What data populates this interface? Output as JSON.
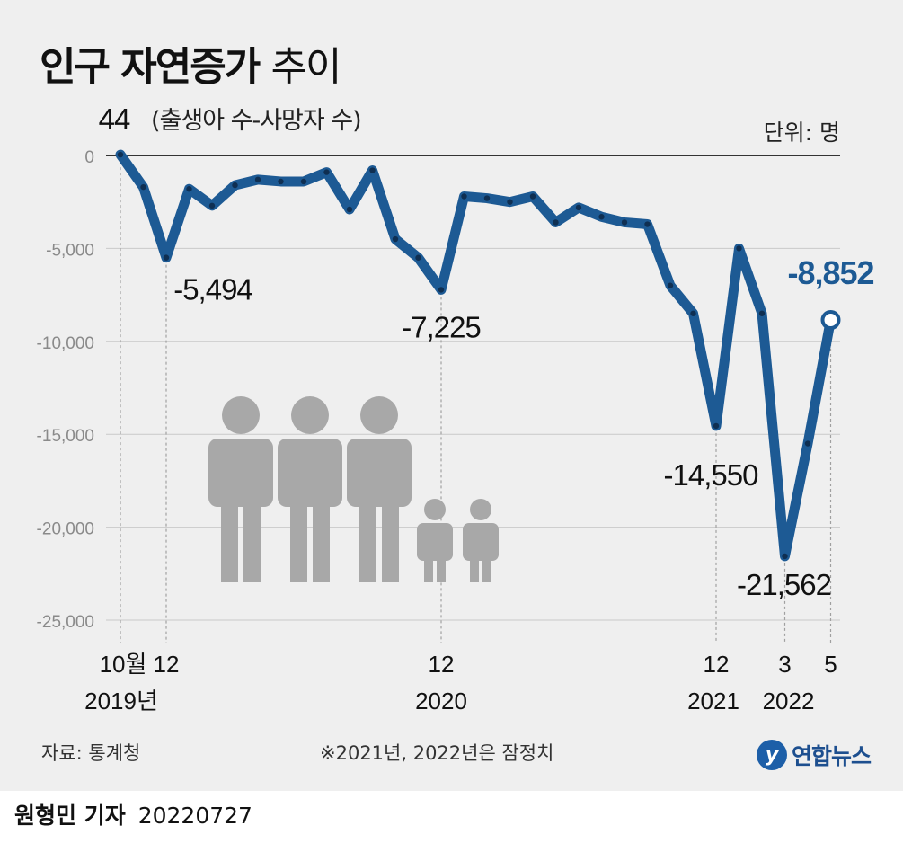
{
  "header": {
    "title_bold": "인구 자연증가",
    "title_regular": "추이",
    "subtitle": "(출생아 수-사망자 수)",
    "unit": "단위: 명"
  },
  "footer": {
    "source": "자료: 통계청",
    "note": "※2021년, 2022년은 잠정치",
    "logo_text": "연합뉴스",
    "byline_name": "원형민 기자",
    "byline_date": "20220727"
  },
  "colors": {
    "line": "#1d5a94",
    "highlight": "#1d5a94",
    "panel": "#efefef",
    "people": "#a8a8a8"
  },
  "chart_data": {
    "type": "line",
    "title": "인구 자연증가 추이",
    "subtitle": "(출생아 수-사망자 수)",
    "unit": "단위: 명",
    "ylim": [
      -25000,
      0
    ],
    "yticks": [
      0,
      -5000,
      -10000,
      -15000,
      -20000,
      -25000
    ],
    "ytick_labels": [
      "0",
      "-5,000",
      "-10,000",
      "-15,000",
      "-20,000",
      "-25,000"
    ],
    "grid": true,
    "x": [
      "2019-10",
      "2019-11",
      "2019-12",
      "2020-01",
      "2020-02",
      "2020-03",
      "2020-04",
      "2020-05",
      "2020-06",
      "2020-07",
      "2020-08",
      "2020-09",
      "2020-10",
      "2020-11",
      "2020-12",
      "2021-01",
      "2021-02",
      "2021-03",
      "2021-04",
      "2021-05",
      "2021-06",
      "2021-07",
      "2021-08",
      "2021-09",
      "2021-10",
      "2021-11",
      "2021-12",
      "2022-01",
      "2022-02",
      "2022-03",
      "2022-04",
      "2022-05"
    ],
    "values": [
      44,
      -1700,
      -5494,
      -1800,
      -2700,
      -1600,
      -1300,
      -1400,
      -1400,
      -900,
      -2900,
      -800,
      -4500,
      -5500,
      -7225,
      -2200,
      -2300,
      -2500,
      -2200,
      -3600,
      -2800,
      -3300,
      -3600,
      -3700,
      -7000,
      -8500,
      -14550,
      -5000,
      -8500,
      -21562,
      -15500,
      -8852
    ],
    "tick_labels": [
      {
        "index": 0,
        "label": "10월"
      },
      {
        "index": 2,
        "label": "12"
      },
      {
        "index": 14,
        "label": "12"
      },
      {
        "index": 26,
        "label": "12"
      },
      {
        "index": 29,
        "label": "3"
      },
      {
        "index": 31,
        "label": "5"
      }
    ],
    "year_labels": [
      {
        "index": 2,
        "label": "2019년"
      },
      {
        "index": 14,
        "label": "2020"
      },
      {
        "index": 26,
        "label": "2021"
      },
      {
        "index": 29,
        "label": "2022"
      }
    ],
    "data_labels": [
      {
        "index": 0,
        "label": "44"
      },
      {
        "index": 2,
        "label": "-5,494"
      },
      {
        "index": 14,
        "label": "-7,225"
      },
      {
        "index": 26,
        "label": "-14,550"
      },
      {
        "index": 29,
        "label": "-21,562"
      },
      {
        "index": 31,
        "label": "-8,852"
      }
    ]
  }
}
